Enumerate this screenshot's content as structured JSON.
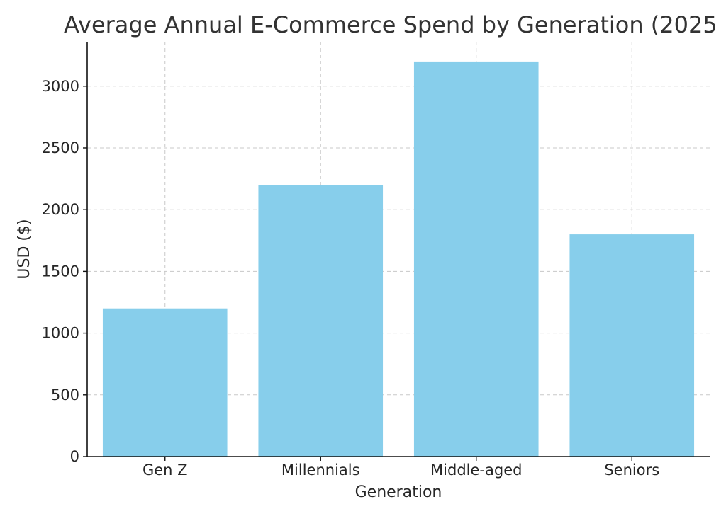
{
  "chart_data": {
    "type": "bar",
    "title": "Average Annual E-Commerce Spend by Generation (2025",
    "xlabel": "Generation",
    "ylabel": "USD ($)",
    "categories": [
      "Gen Z",
      "Millennials",
      "Middle-aged",
      "Seniors"
    ],
    "values": [
      1200,
      2200,
      3200,
      1800
    ],
    "ylim": [
      0,
      3360
    ],
    "yticks": [
      0,
      500,
      1000,
      1500,
      2000,
      2500,
      3000
    ],
    "grid": true,
    "legend": "none",
    "bar_color": "#87ceeb"
  }
}
